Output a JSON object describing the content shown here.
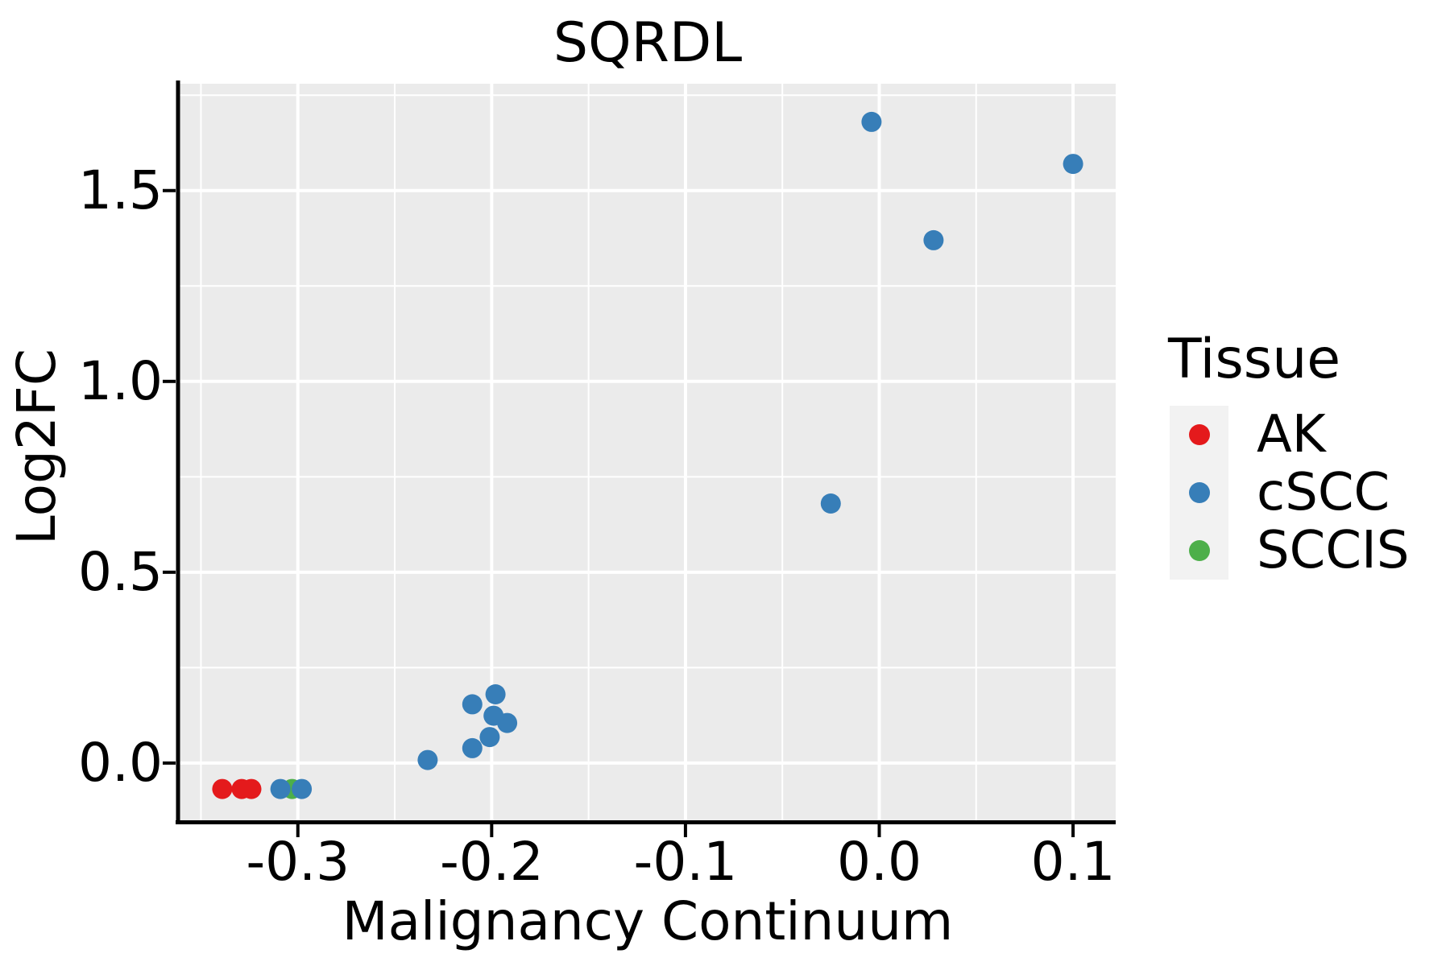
{
  "chart_data": {
    "type": "scatter",
    "title": "SQRDL",
    "xlabel": "Malignancy Continuum",
    "ylabel": "Log2FC",
    "xlim": [
      -0.361,
      0.122
    ],
    "ylim": [
      -0.15,
      1.78
    ],
    "grid": true,
    "panel_background": "#ebebeb",
    "gridline_color": "#ffffff",
    "axis_color": "#000000",
    "x_ticks": {
      "values": [
        -0.3,
        -0.2,
        -0.1,
        0.0,
        0.1
      ],
      "labels": [
        "-0.3",
        "-0.2",
        "-0.1",
        "0.0",
        "0.1"
      ],
      "minor": [
        -0.35,
        -0.25,
        -0.15,
        -0.05,
        0.05
      ]
    },
    "y_ticks": {
      "values": [
        0.0,
        0.5,
        1.0,
        1.5
      ],
      "labels": [
        "0.0",
        "0.5",
        "1.0",
        "1.5"
      ],
      "minor": [
        0.25,
        0.75,
        1.25,
        1.75
      ]
    },
    "legend": {
      "title": "Tissue",
      "position": "right",
      "items": [
        {
          "label": "AK",
          "color": "#e41a1c"
        },
        {
          "label": "cSCC",
          "color": "#377eb8"
        },
        {
          "label": "SCCIS",
          "color": "#4daf4a"
        }
      ]
    },
    "point_radius_px": 12.5,
    "draw_order": [
      "SCCIS",
      "AK",
      "cSCC"
    ],
    "series": [
      {
        "name": "AK",
        "color": "#e41a1c",
        "points": [
          [
            -0.339,
            -0.068
          ],
          [
            -0.329,
            -0.068
          ],
          [
            -0.324,
            -0.068
          ]
        ]
      },
      {
        "name": "cSCC",
        "color": "#377eb8",
        "points": [
          [
            -0.309,
            -0.068
          ],
          [
            -0.298,
            -0.068
          ],
          [
            -0.233,
            0.008
          ],
          [
            -0.21,
            0.039
          ],
          [
            -0.201,
            0.068
          ],
          [
            -0.192,
            0.105
          ],
          [
            -0.199,
            0.124
          ],
          [
            -0.21,
            0.154
          ],
          [
            -0.198,
            0.18
          ],
          [
            -0.025,
            0.68
          ],
          [
            -0.004,
            1.68
          ],
          [
            0.028,
            1.37
          ],
          [
            0.1,
            1.57
          ]
        ]
      },
      {
        "name": "SCCIS",
        "color": "#4daf4a",
        "points": [
          [
            -0.303,
            -0.068
          ]
        ]
      }
    ]
  }
}
